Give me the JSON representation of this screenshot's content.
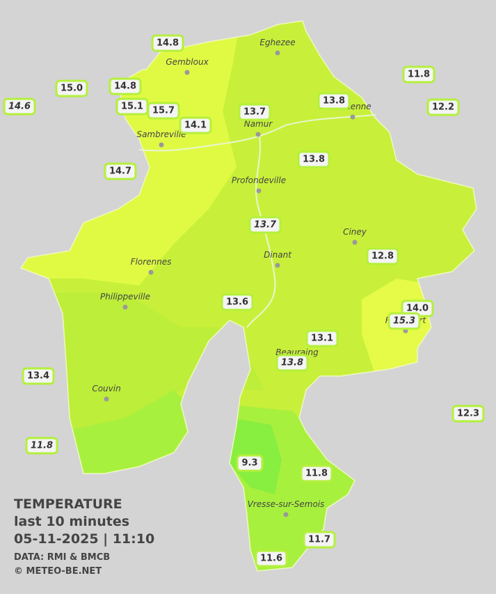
{
  "towns": [
    "Eghezee",
    "Gembloux",
    "Andenne",
    "Namur",
    "Sambreville",
    "Profondeville",
    "Ciney",
    "Dinant",
    "Florennes",
    "Philippeville",
    "Rochefort",
    "Beauraing",
    "Couvin",
    "Vresse-sur-Semois"
  ],
  "stations": [
    {
      "label": "14.8",
      "italic": false
    },
    {
      "label": "15.0",
      "italic": false
    },
    {
      "label": "14.6",
      "italic": true
    },
    {
      "label": "14.8",
      "italic": false
    },
    {
      "label": "15.1",
      "italic": false
    },
    {
      "label": "15.7",
      "italic": false
    },
    {
      "label": "14.1",
      "italic": false
    },
    {
      "label": "13.7",
      "italic": false
    },
    {
      "label": "13.8",
      "italic": false
    },
    {
      "label": "11.8",
      "italic": false
    },
    {
      "label": "12.2",
      "italic": false
    },
    {
      "label": "14.7",
      "italic": false
    },
    {
      "label": "13.8",
      "italic": false
    },
    {
      "label": "13.7",
      "italic": true
    },
    {
      "label": "12.8",
      "italic": false
    },
    {
      "label": "13.6",
      "italic": false
    },
    {
      "label": "14.0",
      "italic": false
    },
    {
      "label": "15.3",
      "italic": true
    },
    {
      "label": "13.1",
      "italic": false
    },
    {
      "label": "13.8",
      "italic": true
    },
    {
      "label": "13.4",
      "italic": false
    },
    {
      "label": "12.3",
      "italic": false
    },
    {
      "label": "11.8",
      "italic": true
    },
    {
      "label": "9.3",
      "italic": false
    },
    {
      "label": "11.8",
      "italic": false
    },
    {
      "label": "11.7",
      "italic": false
    },
    {
      "label": "11.6",
      "italic": false
    }
  ],
  "legend": {
    "title": "TEMPERATURE",
    "period": "last 10 minutes",
    "datetime": "05-11-2025  |  11:10",
    "source": "DATA: RMI & BMCB",
    "copyright": "© METEO-BE.NET"
  }
}
